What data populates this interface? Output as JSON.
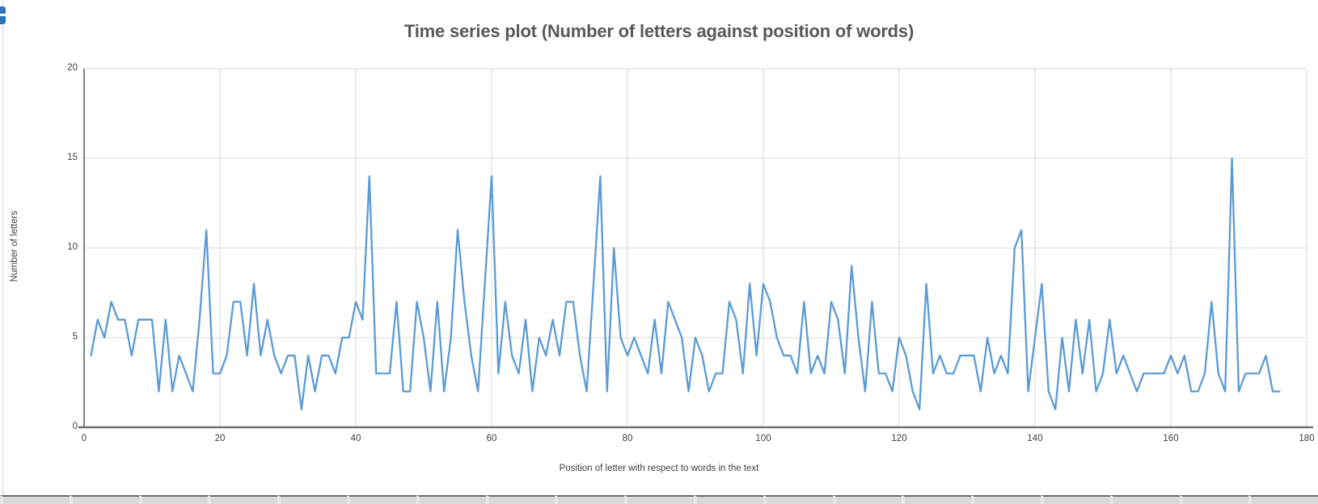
{
  "window": {
    "corner_icon": "chart-glyph"
  },
  "chart_data": {
    "type": "line",
    "title": "Time series plot (Number of letters against position of words)",
    "xlabel": "Position of letter with respect to words in the text",
    "ylabel": "Number of letters",
    "x_start": 1,
    "x_step": 1,
    "values": [
      4,
      6,
      5,
      7,
      6,
      6,
      4,
      6,
      6,
      6,
      2,
      6,
      2,
      4,
      3,
      2,
      6,
      11,
      3,
      3,
      4,
      7,
      7,
      4,
      8,
      4,
      6,
      4,
      3,
      4,
      4,
      1,
      4,
      2,
      4,
      4,
      3,
      5,
      5,
      7,
      6,
      14,
      3,
      3,
      3,
      7,
      2,
      2,
      7,
      5,
      2,
      7,
      2,
      5,
      11,
      7,
      4,
      2,
      8,
      14,
      3,
      7,
      4,
      3,
      6,
      2,
      5,
      4,
      6,
      4,
      7,
      7,
      4,
      2,
      8,
      14,
      2,
      10,
      5,
      4,
      5,
      4,
      3,
      6,
      3,
      7,
      6,
      5,
      2,
      5,
      4,
      2,
      3,
      3,
      7,
      6,
      3,
      8,
      4,
      8,
      7,
      5,
      4,
      4,
      3,
      7,
      3,
      4,
      3,
      7,
      6,
      3,
      9,
      5,
      2,
      7,
      3,
      3,
      2,
      5,
      4,
      2,
      1,
      8,
      3,
      4,
      3,
      3,
      4,
      4,
      4,
      2,
      5,
      3,
      4,
      3,
      10,
      11,
      2,
      5,
      8,
      2,
      1,
      5,
      2,
      6,
      3,
      6,
      2,
      3,
      6,
      3,
      4,
      3,
      2,
      3,
      3,
      3,
      3,
      4,
      3,
      4,
      2,
      2,
      3,
      7,
      3,
      2,
      15,
      2,
      3,
      3,
      3,
      4,
      2,
      2
    ],
    "xlim": [
      0,
      180
    ],
    "ylim": [
      0,
      20
    ],
    "x_ticks": [
      0,
      20,
      40,
      60,
      80,
      100,
      120,
      140,
      160,
      180
    ],
    "y_ticks": [
      0,
      5,
      10,
      15,
      20
    ],
    "grid": true,
    "legend": "none",
    "line_color": "#5b9bd5",
    "grid_color": "#d9d9d9",
    "axis_color": "#6e6e6e",
    "y_axis_color": "#595959",
    "text_color": "#595959",
    "tick_color": "#404040"
  }
}
